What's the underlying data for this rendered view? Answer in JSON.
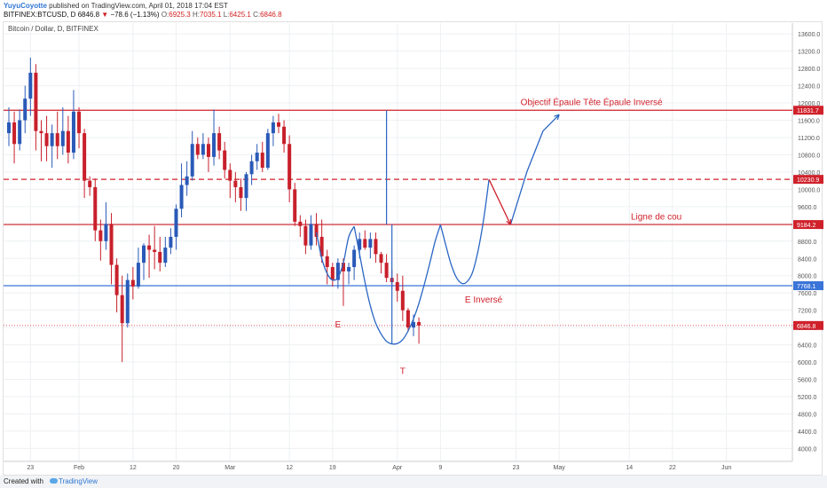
{
  "header": {
    "user": "YuyuCoyotte",
    "published": "published on TradingView.com, April 01, 2018 17:04 EST",
    "symbol": "BITFINEX:BTCUSD, D",
    "last": "6846.8",
    "change_arrow": "▼",
    "change": "−78.6 (−1.13%)",
    "o_label": "O:",
    "o_value": "6925.3",
    "h_label": "H:",
    "h_value": "7035.1",
    "l_label": "L:",
    "l_value": "6425.1",
    "c_label": "C:",
    "c_value": "6846.8"
  },
  "chart_label": "Bitcoin / Dollar, D, BITFINEX",
  "footer": {
    "created_with": "Created with",
    "brand": "TradingView"
  },
  "colors": {
    "up": "#2a5ab8",
    "down": "#c8202b",
    "level_red": "#d0212b",
    "level_blue": "#3a74d8",
    "drawing": "#2a66c4",
    "axis_text": "#555555"
  },
  "chart_data": {
    "type": "candlestick",
    "ylim": [
      3700,
      13850
    ],
    "yticks": [
      4000,
      4400,
      4800,
      5200,
      5600,
      6000,
      6400,
      6800,
      7200,
      7600,
      8000,
      8400,
      8800,
      9200,
      9600,
      10000,
      10400,
      10800,
      11200,
      11600,
      12000,
      12400,
      12800,
      13200,
      13600
    ],
    "xticks": [
      {
        "day": 4,
        "label": "23"
      },
      {
        "day": 13,
        "label": "Feb"
      },
      {
        "day": 23,
        "label": "12"
      },
      {
        "day": 31,
        "label": "20"
      },
      {
        "day": 41,
        "label": "Mar"
      },
      {
        "day": 52,
        "label": "12"
      },
      {
        "day": 60,
        "label": "19"
      },
      {
        "day": 72,
        "label": "Apr"
      },
      {
        "day": 80,
        "label": "9"
      },
      {
        "day": 94,
        "label": "23"
      },
      {
        "day": 102,
        "label": "May"
      },
      {
        "day": 115,
        "label": "14"
      },
      {
        "day": 123,
        "label": "22"
      },
      {
        "day": 133,
        "label": "Jun"
      }
    ],
    "candles": [
      [
        11300,
        11900,
        11000,
        11550
      ],
      [
        11550,
        11800,
        10600,
        11050
      ],
      [
        11050,
        11850,
        10900,
        11600
      ],
      [
        11600,
        12400,
        11300,
        12100
      ],
      [
        12100,
        13050,
        11700,
        12700
      ],
      [
        12700,
        12900,
        10900,
        11350
      ],
      [
        11350,
        11600,
        10650,
        11300
      ],
      [
        11300,
        11700,
        10650,
        11000
      ],
      [
        11000,
        11500,
        10500,
        11300
      ],
      [
        11300,
        11800,
        10700,
        11000
      ],
      [
        11000,
        11900,
        10800,
        11350
      ],
      [
        11350,
        11700,
        10600,
        10850
      ],
      [
        10850,
        12300,
        10700,
        11800
      ],
      [
        11800,
        11900,
        10950,
        11300
      ],
      [
        11300,
        11400,
        9800,
        10200
      ],
      [
        10200,
        10300,
        9850,
        10050
      ],
      [
        10050,
        10250,
        8800,
        9050
      ],
      [
        9050,
        9300,
        8350,
        8800
      ],
      [
        8800,
        9700,
        8600,
        9200
      ],
      [
        9200,
        9450,
        7800,
        8250
      ],
      [
        8250,
        8400,
        7150,
        7550
      ],
      [
        7550,
        8000,
        6000,
        6900
      ],
      [
        6900,
        8050,
        6800,
        7900
      ],
      [
        7900,
        8200,
        7450,
        7750
      ],
      [
        7750,
        8650,
        7700,
        8300
      ],
      [
        8300,
        8750,
        7900,
        8700
      ],
      [
        8700,
        8950,
        7950,
        8600
      ],
      [
        8600,
        9150,
        8150,
        8550
      ],
      [
        8550,
        8900,
        8100,
        8300
      ],
      [
        8300,
        8900,
        8200,
        8650
      ],
      [
        8650,
        9100,
        8500,
        8900
      ],
      [
        8900,
        9650,
        8600,
        9550
      ],
      [
        9550,
        10600,
        9350,
        10100
      ],
      [
        10100,
        10650,
        9850,
        10300
      ],
      [
        10300,
        11350,
        10200,
        11050
      ],
      [
        11050,
        11200,
        10700,
        10800
      ],
      [
        10800,
        11300,
        10700,
        11050
      ],
      [
        11050,
        11200,
        10400,
        10750
      ],
      [
        10750,
        11850,
        10550,
        11300
      ],
      [
        11300,
        11450,
        10700,
        10900
      ],
      [
        10900,
        11100,
        10250,
        10450
      ],
      [
        10450,
        10600,
        9800,
        10200
      ],
      [
        10200,
        10400,
        9700,
        10050
      ],
      [
        10050,
        10250,
        9500,
        9800
      ],
      [
        9800,
        10400,
        9500,
        10350
      ],
      [
        10350,
        10800,
        10100,
        10650
      ],
      [
        10650,
        11050,
        10450,
        10850
      ],
      [
        10850,
        11100,
        10400,
        10500
      ],
      [
        10500,
        11400,
        10450,
        11300
      ],
      [
        11300,
        11700,
        11000,
        11550
      ],
      [
        11550,
        11750,
        11300,
        11450
      ],
      [
        11450,
        11600,
        10850,
        11050
      ],
      [
        11050,
        11250,
        9700,
        10000
      ],
      [
        10000,
        10150,
        9150,
        9250
      ],
      [
        9250,
        9400,
        8900,
        9150
      ],
      [
        9150,
        9300,
        8500,
        8700
      ],
      [
        8700,
        9400,
        8600,
        9200
      ],
      [
        9200,
        9450,
        8700,
        8900
      ],
      [
        8900,
        9300,
        8300,
        8450
      ],
      [
        8450,
        8600,
        7800,
        8200
      ],
      [
        8200,
        8300,
        7750,
        7900
      ],
      [
        7900,
        8400,
        7700,
        8300
      ],
      [
        8300,
        8400,
        7300,
        8100
      ],
      [
        8100,
        8300,
        7800,
        8200
      ],
      [
        8200,
        8700,
        7900,
        8600
      ],
      [
        8600,
        9000,
        8400,
        8850
      ],
      [
        8850,
        9050,
        8600,
        8650
      ],
      [
        8650,
        9000,
        8400,
        8850
      ],
      [
        8850,
        9000,
        8300,
        8500
      ],
      [
        8500,
        8550,
        8050,
        8300
      ],
      [
        8300,
        8500,
        7850,
        7950
      ],
      [
        7950,
        8150,
        7700,
        7850
      ],
      [
        7850,
        8050,
        7400,
        7650
      ],
      [
        7650,
        8000,
        6950,
        7200
      ],
      [
        7200,
        7250,
        6700,
        6800
      ],
      [
        6800,
        7100,
        6600,
        6925
      ],
      [
        6925.3,
        7035.1,
        6425.1,
        6846.8
      ]
    ],
    "levels": [
      {
        "price": 11831.7,
        "color": "red",
        "style": "solid",
        "label": "11831.7"
      },
      {
        "price": 10230.9,
        "color": "red",
        "style": "dashed",
        "label": "10230.9"
      },
      {
        "price": 9184.2,
        "color": "red",
        "style": "solid",
        "label": "9184.2"
      },
      {
        "price": 7768.1,
        "color": "blue",
        "style": "solid",
        "label": "7768.1"
      },
      {
        "price": 6846.8,
        "color": "red",
        "style": "dotted",
        "label": "6846.8"
      }
    ],
    "annotations": [
      {
        "text": "Objectif Épaule Tête Épaule Inversé",
        "day": 108,
        "price": 11950,
        "color": "red"
      },
      {
        "text": "Ligne de cou",
        "day": 120,
        "price": 9300,
        "color": "red"
      },
      {
        "text": "E Inversé",
        "day": 88,
        "price": 7380,
        "color": "red"
      },
      {
        "text": "E",
        "day": 61,
        "price": 6800,
        "color": "red"
      },
      {
        "text": "T",
        "day": 73,
        "price": 5720,
        "color": "red"
      }
    ],
    "drawings": {
      "left_shoulder": [
        [
          57,
          9000
        ],
        [
          58,
          8400
        ],
        [
          59,
          8050
        ],
        [
          60,
          7900
        ],
        [
          61,
          7960
        ],
        [
          62,
          8300
        ],
        [
          63,
          8900
        ],
        [
          64,
          9140
        ]
      ],
      "head": [
        [
          64,
          9140
        ],
        [
          65,
          8500
        ],
        [
          66,
          7850
        ],
        [
          67,
          7300
        ],
        [
          68,
          6900
        ],
        [
          69,
          6650
        ],
        [
          70,
          6480
        ],
        [
          71,
          6420
        ],
        [
          72,
          6430
        ],
        [
          73,
          6520
        ],
        [
          74,
          6720
        ],
        [
          75,
          7000
        ],
        [
          76,
          7360
        ],
        [
          77,
          7800
        ],
        [
          78,
          8280
        ],
        [
          79,
          8790
        ],
        [
          80,
          9180
        ]
      ],
      "right_shoulder_and_path": [
        [
          80,
          9180
        ],
        [
          81,
          8700
        ],
        [
          82,
          8250
        ],
        [
          83,
          7950
        ],
        [
          84,
          7820
        ],
        [
          85,
          7870
        ],
        [
          86,
          8100
        ],
        [
          87,
          8600
        ],
        [
          88,
          9300
        ],
        [
          89,
          10230
        ]
      ],
      "retrace": [
        [
          89,
          10230
        ],
        [
          93,
          9184
        ]
      ],
      "breakout": [
        [
          93,
          9184
        ],
        [
          96,
          10400
        ],
        [
          99,
          11350
        ],
        [
          102,
          11730
        ]
      ],
      "target_ruler_day": 70,
      "target_ruler": [
        9184,
        11831.7
      ],
      "head_ruler_day": 71,
      "head_ruler": [
        6420,
        9184
      ]
    }
  }
}
